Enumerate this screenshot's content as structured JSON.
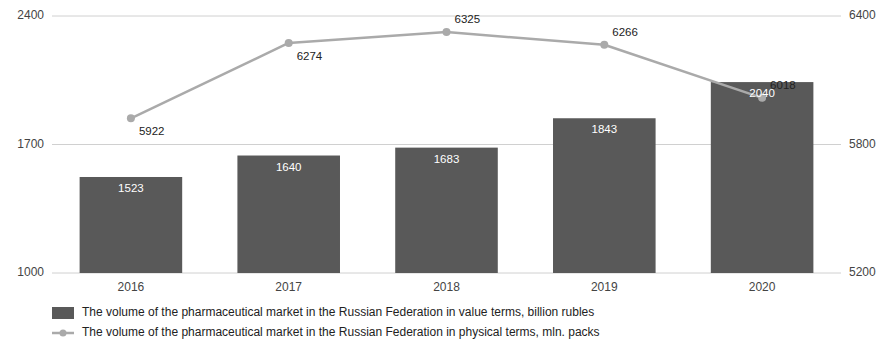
{
  "chart_data": {
    "type": "bar",
    "categories": [
      "2016",
      "2017",
      "2018",
      "2019",
      "2020"
    ],
    "series": [
      {
        "name": "The volume of the pharmaceutical market in the Russian Federation in value terms, billion rubles",
        "type": "bar",
        "color": "#595959",
        "values": [
          1523,
          1640,
          1683,
          1843,
          2040
        ]
      },
      {
        "name": "The volume of the pharmaceutical market in the Russian Federation in physical terms, mln. packs",
        "type": "line",
        "color": "#aaaaaa",
        "marker": "circle",
        "axis": "y2",
        "values": [
          5922,
          6274,
          6325,
          6266,
          6018
        ]
      }
    ],
    "ylim": [
      1000,
      2400
    ],
    "yticks": [
      1000,
      1700,
      2400
    ],
    "y2lim": [
      5200,
      6400
    ],
    "y2ticks": [
      5200,
      5800,
      6400
    ],
    "grid": true,
    "data_labels": true,
    "legend": "bottom"
  }
}
